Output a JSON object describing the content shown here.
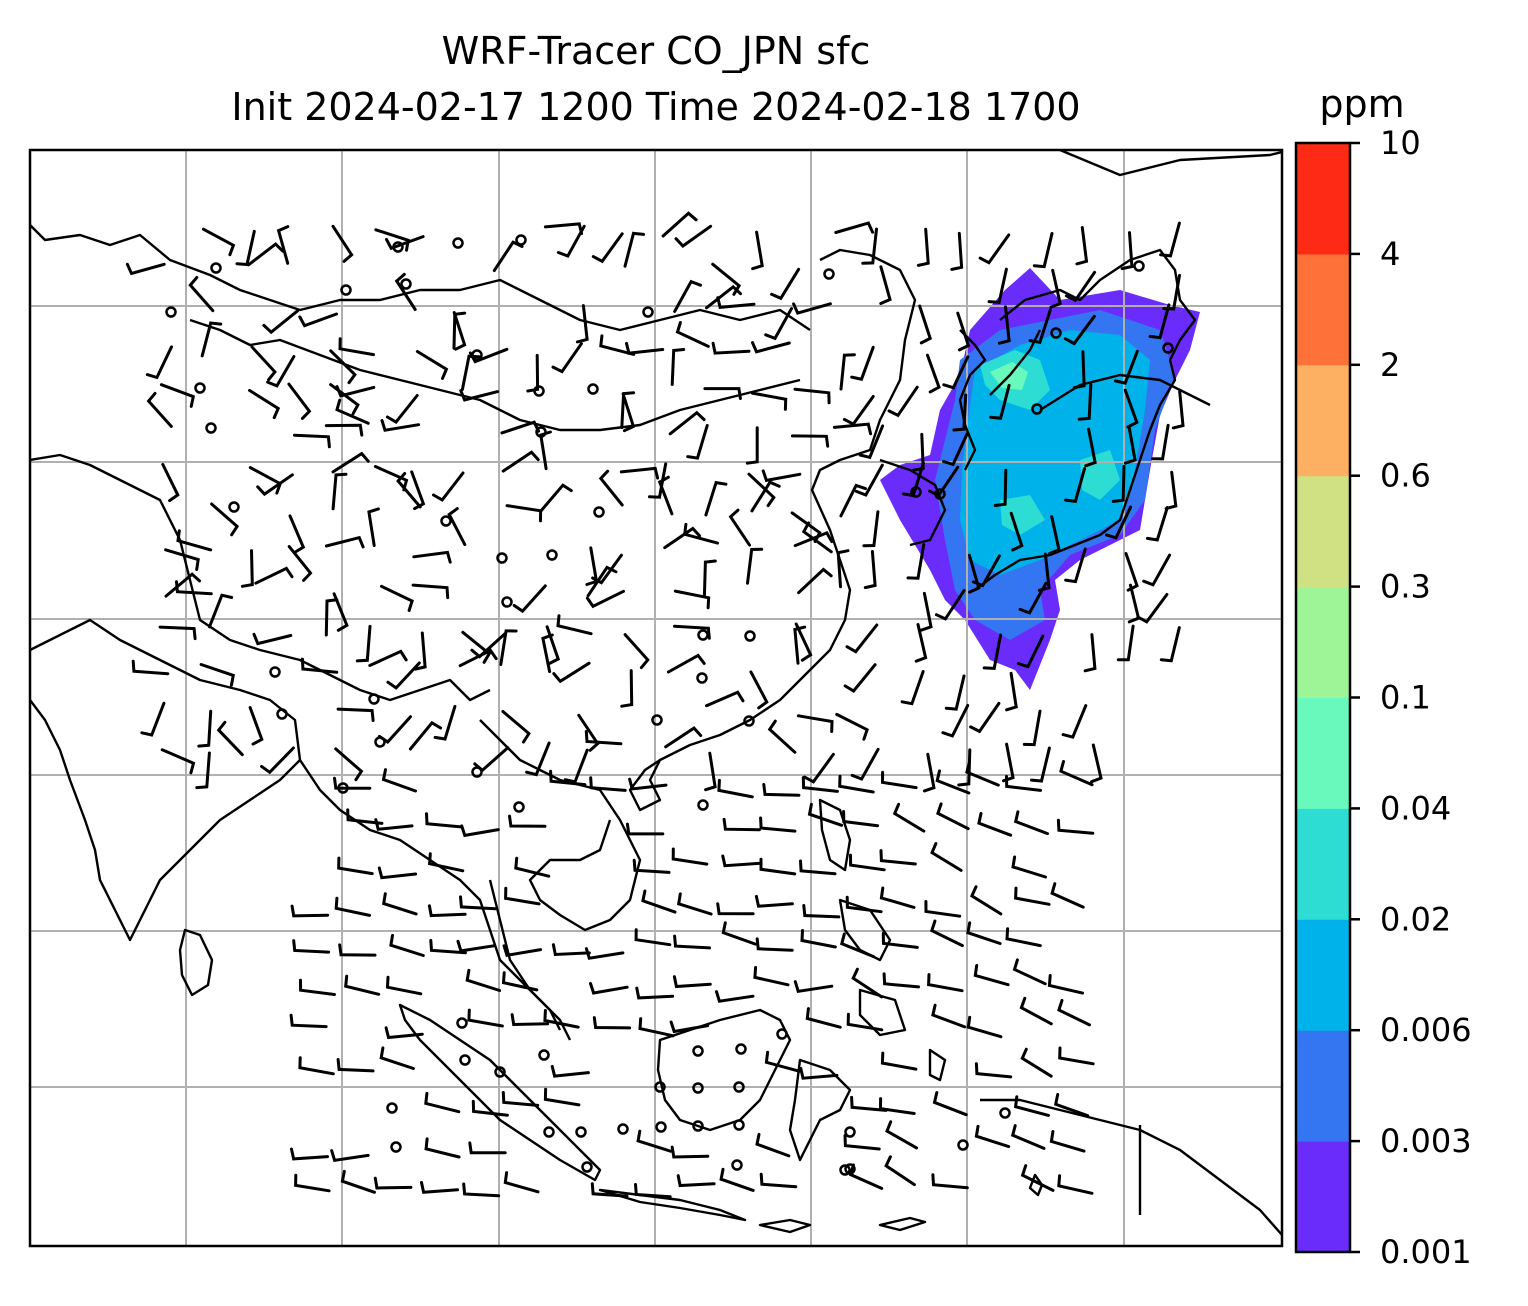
{
  "title": {
    "line1": "WRF-Tracer CO_JPN sfc",
    "line2": "Init 2024-02-17 1200 Time 2024-02-18 1700"
  },
  "colorbar": {
    "unit": "ppm",
    "levels": [
      "0.001",
      "0.003",
      "0.006",
      "0.02",
      "0.04",
      "0.1",
      "0.3",
      "0.6",
      "2",
      "4",
      "10"
    ],
    "colors": [
      "#6a2cfa",
      "#3475f2",
      "#00b2ea",
      "#2ddcd2",
      "#69f9bd",
      "#9ef597",
      "#d0e183",
      "#fdaf62",
      "#fe7239",
      "#fe2a15"
    ]
  },
  "map": {
    "gridlines": true,
    "features": [
      "coastlines",
      "country-borders",
      "wind-barbs",
      "tracer-concentration-fill"
    ]
  }
}
